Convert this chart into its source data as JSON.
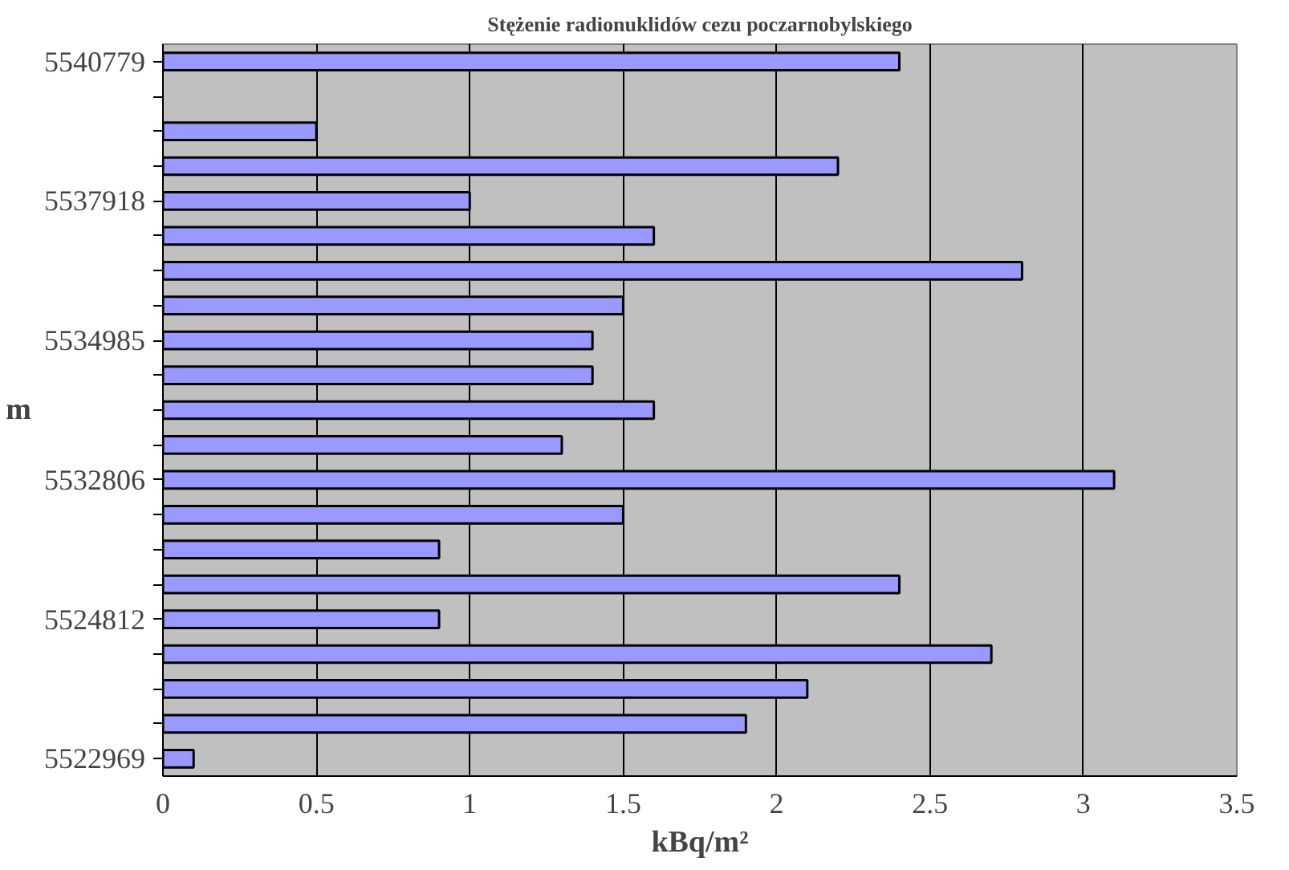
{
  "chart_data": {
    "type": "bar",
    "orientation": "horizontal",
    "title": "Stężenie radionuklidów cezu poczarnobylskiego",
    "xlabel": "kBq/m²",
    "ylabel": "m",
    "categories": [
      "5540779",
      null,
      null,
      null,
      "5537918",
      null,
      null,
      null,
      "5534985",
      null,
      null,
      null,
      "5532806",
      null,
      null,
      null,
      "5524812",
      null,
      null,
      null,
      "5522969"
    ],
    "values": [
      2.4,
      null,
      0.5,
      2.2,
      1.0,
      1.6,
      2.8,
      1.5,
      1.4,
      1.4,
      1.6,
      1.3,
      3.1,
      1.5,
      0.9,
      2.4,
      0.9,
      2.7,
      2.1,
      1.9,
      0.1
    ],
    "color": "#9999ff",
    "xlim": [
      0,
      3.5
    ],
    "xticks": [
      0,
      0.5,
      1,
      1.5,
      2,
      2.5,
      3,
      3.5
    ],
    "grid": "x"
  }
}
